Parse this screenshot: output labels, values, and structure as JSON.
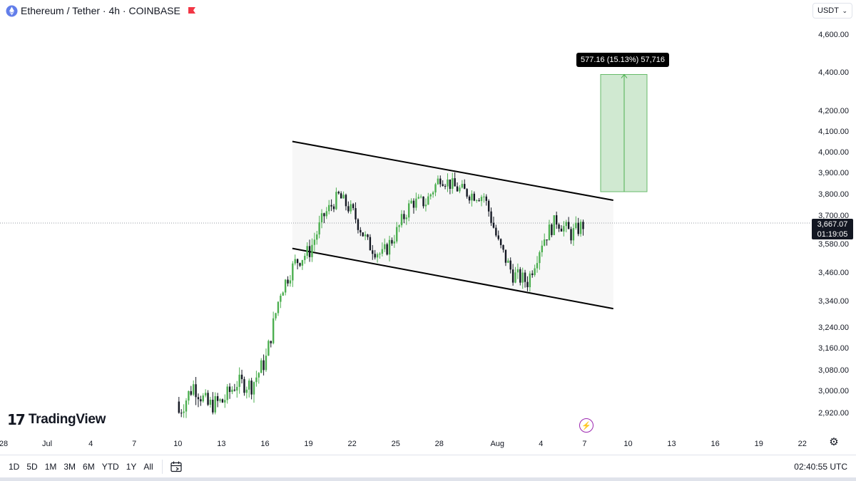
{
  "header": {
    "title": "Ethereum / Tether · 4h · COINBASE",
    "symbol_icon": "ethereum-logo-icon",
    "flag_icon": "red-flag-icon"
  },
  "currency": {
    "label": "USDT"
  },
  "colors": {
    "bull": "#26a69a",
    "bull_light": "#4caf50",
    "bear": "#131722",
    "channel_line": "#000000",
    "channel_fill": "#f7f7f7",
    "projection_fill": "#c8e6c9",
    "projection_stroke": "#4caf50",
    "price_line": "#9598a1"
  },
  "price_badge": {
    "price": "3,667.07",
    "countdown": "01:19:05"
  },
  "measure": {
    "label": "577.16 (15.13%) 57,716"
  },
  "branding": {
    "name": "TradingView"
  },
  "chart_data": {
    "type": "candlestick",
    "symbol": "Ethereum / Tether",
    "interval": "4h",
    "exchange": "COINBASE",
    "last_price": 3667.07,
    "y_axis_labels": [
      "4,600.00",
      "4,400.00",
      "4,200.00",
      "4,100.00",
      "4,000.00",
      "3,900.00",
      "3,800.00",
      "3,700.00",
      "3,580.00",
      "3,460.00",
      "3,340.00",
      "3,240.00",
      "3,160.00",
      "3,080.00",
      "3,000.00",
      "2,920.00"
    ],
    "x_axis_labels": [
      "28",
      "Jul",
      "4",
      "7",
      "10",
      "13",
      "16",
      "19",
      "22",
      "25",
      "28",
      "Aug",
      "4",
      "7",
      "10",
      "13",
      "16",
      "19",
      "22"
    ],
    "close_path": [
      {
        "date": "Jul 10",
        "close": 2920
      },
      {
        "date": "Jul 11",
        "close": 3020
      },
      {
        "date": "Jul 12",
        "close": 2945
      },
      {
        "date": "Jul 13",
        "close": 2960
      },
      {
        "date": "Jul 14",
        "close": 3030
      },
      {
        "date": "Jul 15",
        "close": 3020
      },
      {
        "date": "Jul 16",
        "close": 3120
      },
      {
        "date": "Jul 17",
        "close": 3380
      },
      {
        "date": "Jul 18",
        "close": 3500
      },
      {
        "date": "Jul 19",
        "close": 3550
      },
      {
        "date": "Jul 20",
        "close": 3700
      },
      {
        "date": "Jul 21",
        "close": 3790
      },
      {
        "date": "Jul 22",
        "close": 3710
      },
      {
        "date": "Jul 23",
        "close": 3580
      },
      {
        "date": "Jul 24",
        "close": 3530
      },
      {
        "date": "Jul 25",
        "close": 3630
      },
      {
        "date": "Jul 26",
        "close": 3760
      },
      {
        "date": "Jul 27",
        "close": 3760
      },
      {
        "date": "Jul 28",
        "close": 3880
      },
      {
        "date": "Jul 29",
        "close": 3830
      },
      {
        "date": "Jul 30",
        "close": 3800
      },
      {
        "date": "Jul 31",
        "close": 3790
      },
      {
        "date": "Aug 1",
        "close": 3580
      },
      {
        "date": "Aug 2",
        "close": 3450
      },
      {
        "date": "Aug 3",
        "close": 3420
      },
      {
        "date": "Aug 4",
        "close": 3590
      },
      {
        "date": "Aug 5",
        "close": 3680
      },
      {
        "date": "Aug 6",
        "close": 3620
      },
      {
        "date": "Aug 7",
        "close": 3667
      }
    ],
    "channel": {
      "upper": [
        {
          "date": "Jul 17",
          "price": 4050
        },
        {
          "date": "Aug 8",
          "price": 3770
        }
      ],
      "lower": [
        {
          "date": "Jul 17",
          "price": 3560
        },
        {
          "date": "Aug 8",
          "price": 3310
        }
      ]
    },
    "projection": {
      "start_price": 3810,
      "end_price": 4387,
      "change": "577.16",
      "percent": "15.13%",
      "volume": "57,716"
    }
  },
  "bottom_bar": {
    "ranges": [
      "1D",
      "5D",
      "1M",
      "3M",
      "6M",
      "YTD",
      "1Y",
      "All"
    ],
    "calendar_icon": "calendar-icon",
    "clock": "02:40:55 UTC"
  }
}
